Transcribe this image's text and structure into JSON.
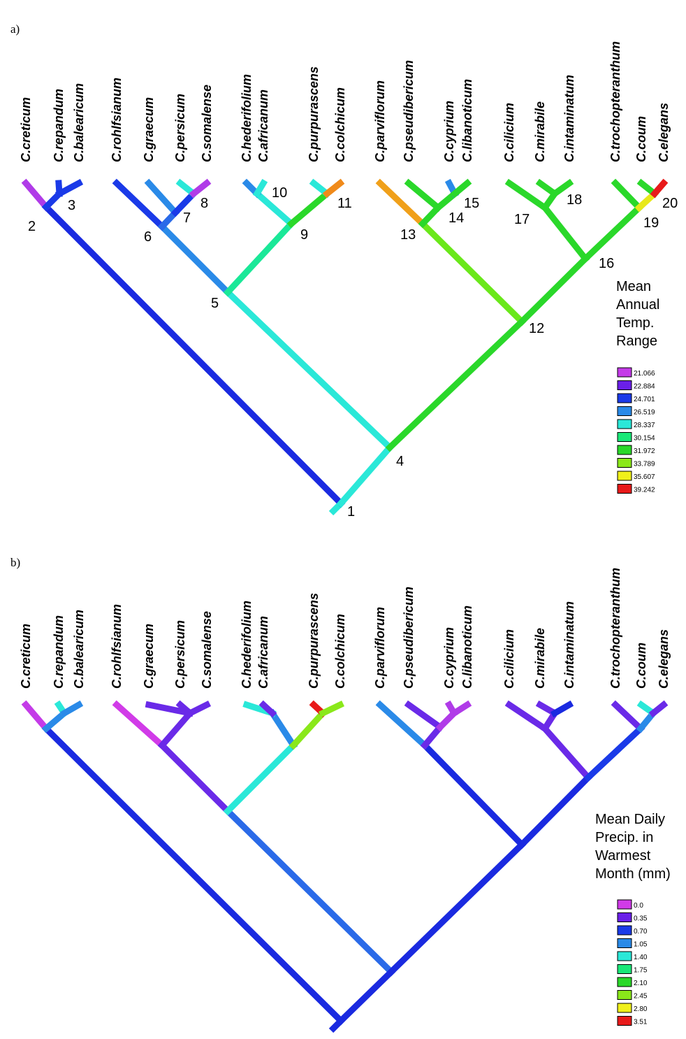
{
  "panels": [
    {
      "id": "a",
      "label": "a)",
      "taxa": [
        "C.creticum",
        "C.repandum",
        "C.balearicum",
        "C.rohlfsianum",
        "C.graecum",
        "C.persicum",
        "C.somalense",
        "C.hederifolium",
        "C.africanum",
        "C.purpurascens",
        "C.colchicum",
        "C.parviflorum",
        "C.pseudibericum",
        "C.cyprium",
        "C.libanoticum",
        "C.cilicium",
        "C.mirabile",
        "C.intaminatum",
        "C.trochopteranthum",
        "C.coum",
        "C.elegans"
      ],
      "legend_title": [
        "Mean",
        "Annual",
        "Temp.",
        "Range"
      ],
      "legend": [
        {
          "value": "21.066",
          "color": "#c43be8"
        },
        {
          "value": "22.884",
          "color": "#6a1fe8"
        },
        {
          "value": "24.701",
          "color": "#1a3ae8"
        },
        {
          "value": "26.519",
          "color": "#2a8ae8"
        },
        {
          "value": "28.337",
          "color": "#2ae8d8"
        },
        {
          "value": "30.154",
          "color": "#1ae878"
        },
        {
          "value": "31.972",
          "color": "#2ad82a"
        },
        {
          "value": "33.789",
          "color": "#8ae81a"
        },
        {
          "value": "35.607",
          "color": "#f0f01a"
        },
        {
          "value": "39.242",
          "color": "#e81a1a"
        }
      ],
      "node_labels": [
        "1",
        "2",
        "3",
        "4",
        "5",
        "6",
        "7",
        "8",
        "9",
        "10",
        "11",
        "12",
        "13",
        "14",
        "15",
        "16",
        "17",
        "18",
        "19",
        "20"
      ]
    },
    {
      "id": "b",
      "label": "b)",
      "taxa": [
        "C.creticum",
        "C.repandum",
        "C.balearicum",
        "C.rohlfsianum",
        "C.graecum",
        "C.persicum",
        "C.somalense",
        "C.hederifolium",
        "C.africanum",
        "C.purpurascens",
        "C.colchicum",
        "C.parviflorum",
        "C.pseudibericum",
        "C.cyprium",
        "C.libanoticum",
        "C.cilicium",
        "C.mirabile",
        "C.intaminatum",
        "C.trochopteranthum",
        "C.coum",
        "C.elegans"
      ],
      "legend_title": [
        "Mean Daily",
        "Precip. in",
        "Warmest",
        "Month (mm)"
      ],
      "legend": [
        {
          "value": "0.0",
          "color": "#d13be8"
        },
        {
          "value": "0.35",
          "color": "#6a1fe8"
        },
        {
          "value": "0.70",
          "color": "#1a3ae8"
        },
        {
          "value": "1.05",
          "color": "#2a8ae8"
        },
        {
          "value": "1.40",
          "color": "#2ae8d8"
        },
        {
          "value": "1.75",
          "color": "#1ae878"
        },
        {
          "value": "2.10",
          "color": "#2ad82a"
        },
        {
          "value": "2.45",
          "color": "#8ae81a"
        },
        {
          "value": "2.80",
          "color": "#f0f01a"
        },
        {
          "value": "3.51",
          "color": "#e81a1a"
        }
      ]
    }
  ]
}
